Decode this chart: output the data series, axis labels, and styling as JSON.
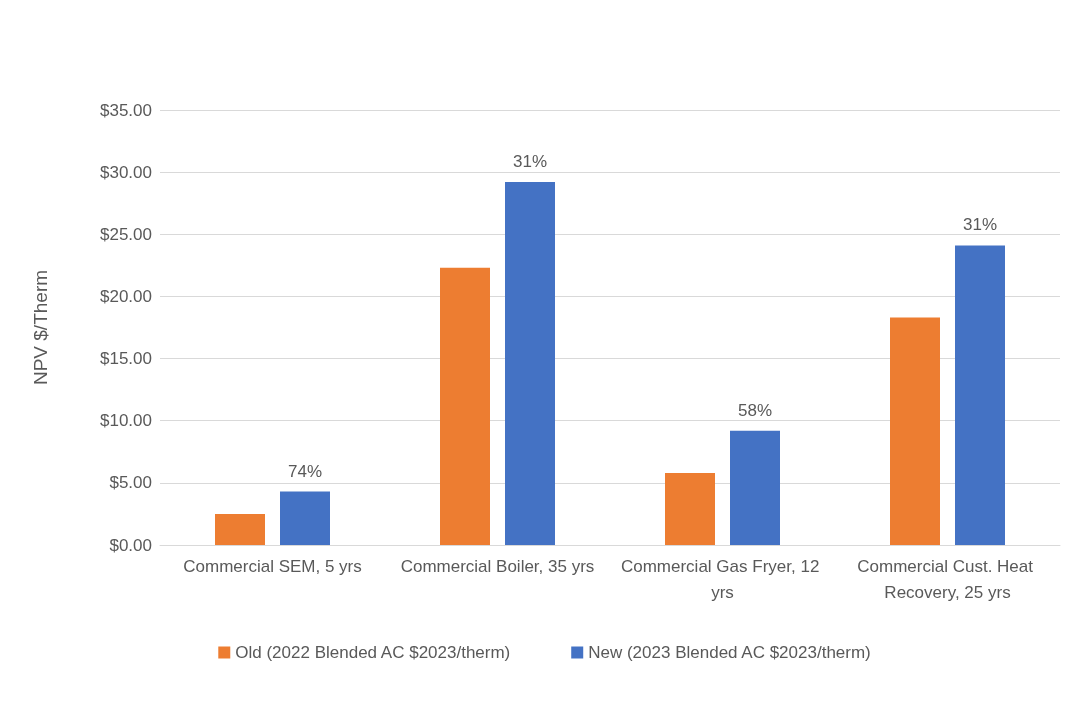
{
  "chart_data": {
    "type": "bar",
    "ylabel": "NPV $/Therm",
    "categories": [
      "Commercial SEM, 5 yrs",
      "Commercial Boiler, 35 yrs",
      "Commercial Gas Fryer, 12 yrs",
      "Commercial Cust. Heat Recovery, 25 yrs"
    ],
    "series": [
      {
        "name": "Old (2022 Blended AC $2023/therm)",
        "color": "#ed7d31",
        "values": [
          2.5,
          22.3,
          5.8,
          18.3
        ]
      },
      {
        "name": "New (2023 Blended AC $2023/therm)",
        "color": "#4472c4",
        "values": [
          4.3,
          29.2,
          9.2,
          24.1
        ]
      }
    ],
    "annotations": [
      "74%",
      "31%",
      "58%",
      "31%"
    ],
    "ylim": [
      0,
      35
    ],
    "yticks": [
      {
        "value": 0,
        "label": "$0.00"
      },
      {
        "value": 5,
        "label": "$5.00"
      },
      {
        "value": 10,
        "label": "$10.00"
      },
      {
        "value": 15,
        "label": "$15.00"
      },
      {
        "value": 20,
        "label": "$20.00"
      },
      {
        "value": 25,
        "label": "$25.00"
      },
      {
        "value": 30,
        "label": "$30.00"
      },
      {
        "value": 35,
        "label": "$35.00"
      }
    ],
    "grid": "y",
    "legend": "bottom"
  }
}
